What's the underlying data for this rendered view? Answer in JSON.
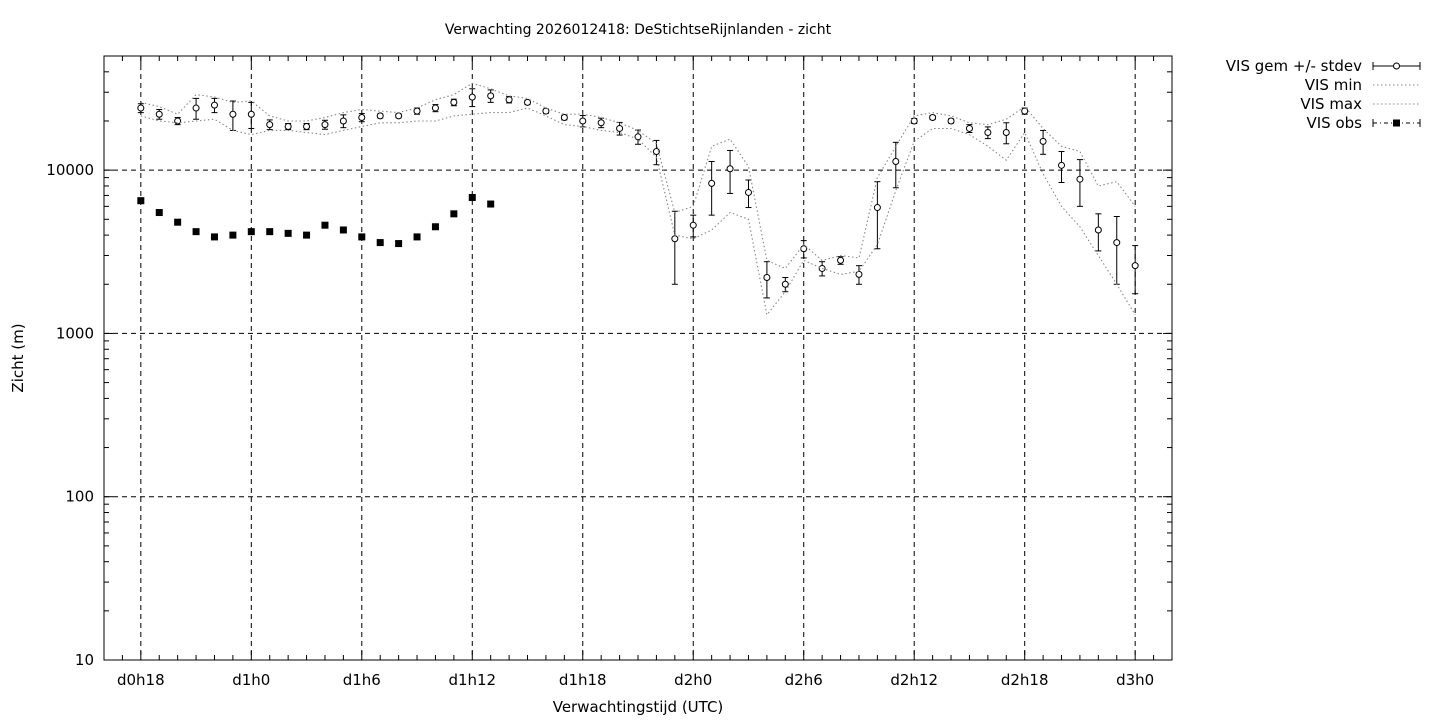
{
  "chart_data": {
    "type": "scatter",
    "title": "Verwachting 2026012418: DeStichtseRijnlanden - zicht",
    "xlabel": "Verwachtingstijd (UTC)",
    "ylabel": "Zicht (m)",
    "y_scale": "log",
    "ylim": [
      10,
      50000
    ],
    "xlim": [
      -2,
      56
    ],
    "grid": true,
    "legend_position": "outside-top-right",
    "x_ticks": [
      {
        "label": "d0h18",
        "x": 0
      },
      {
        "label": "d1h0",
        "x": 6
      },
      {
        "label": "d1h6",
        "x": 12
      },
      {
        "label": "d1h12",
        "x": 18
      },
      {
        "label": "d1h18",
        "x": 24
      },
      {
        "label": "d2h0",
        "x": 30
      },
      {
        "label": "d2h6",
        "x": 36
      },
      {
        "label": "d2h12",
        "x": 42
      },
      {
        "label": "d2h18",
        "x": 48
      },
      {
        "label": "d3h0",
        "x": 54
      }
    ],
    "y_ticks": [
      {
        "label": "10",
        "y": 10
      },
      {
        "label": "100",
        "y": 100
      },
      {
        "label": "1000",
        "y": 1000
      },
      {
        "label": "10000",
        "y": 10000
      }
    ],
    "series": [
      {
        "name": "VIS gem +/- stdev",
        "style": "points-errorbars",
        "x": [
          0,
          1,
          2,
          3,
          4,
          5,
          6,
          7,
          8,
          9,
          10,
          11,
          12,
          13,
          14,
          15,
          16,
          17,
          18,
          19,
          20,
          21,
          22,
          23,
          24,
          25,
          26,
          27,
          28,
          29,
          30,
          31,
          32,
          33,
          34,
          35,
          36,
          37,
          38,
          39,
          40,
          41,
          42,
          43,
          44,
          45,
          46,
          47,
          48,
          49,
          50,
          51,
          52,
          53,
          54
        ],
        "y": [
          24000,
          22000,
          20000,
          24000,
          25000,
          22000,
          22000,
          19000,
          18500,
          18500,
          19000,
          20000,
          21000,
          21500,
          21500,
          23000,
          24000,
          26000,
          28000,
          28500,
          27000,
          26000,
          23000,
          21000,
          20000,
          19500,
          18000,
          16000,
          13000,
          3800,
          4600,
          8300,
          10200,
          7300,
          2200,
          2000,
          3300,
          2500,
          2800,
          2300,
          5900,
          11300,
          20000,
          21000,
          20000,
          18000,
          17000,
          17000,
          23000,
          15000,
          10700,
          8800,
          4300,
          3600,
          2600
        ],
        "y_err": [
          1500,
          1500,
          1000,
          3500,
          2500,
          4500,
          4000,
          1300,
          800,
          800,
          1200,
          1800,
          1200,
          600,
          600,
          1000,
          1200,
          1200,
          3500,
          2500,
          1200,
          800,
          700,
          700,
          1600,
          1300,
          1600,
          1600,
          2200,
          1800,
          700,
          3000,
          3000,
          1400,
          550,
          200,
          400,
          250,
          150,
          300,
          2600,
          3500,
          700,
          600,
          600,
          1000,
          1400,
          2500,
          1000,
          2500,
          2300,
          2800,
          1100,
          1600,
          850
        ]
      },
      {
        "name": "VIS min",
        "style": "dotted-line",
        "x": [
          0,
          1,
          2,
          3,
          4,
          5,
          6,
          7,
          8,
          9,
          10,
          11,
          12,
          13,
          14,
          15,
          16,
          17,
          18,
          19,
          20,
          21,
          22,
          23,
          24,
          25,
          26,
          27,
          28,
          29,
          30,
          31,
          32,
          33,
          34,
          35,
          36,
          37,
          38,
          39,
          40,
          41,
          42,
          43,
          44,
          45,
          46,
          47,
          48,
          49,
          50,
          51,
          52,
          53,
          54
        ],
        "y": [
          21500,
          20000,
          19500,
          20000,
          20500,
          17500,
          16500,
          17500,
          17500,
          17000,
          16500,
          17500,
          18500,
          19500,
          19500,
          20000,
          20000,
          21500,
          22000,
          22500,
          22500,
          24000,
          21500,
          19000,
          18500,
          17500,
          17000,
          15500,
          12000,
          4000,
          3800,
          4300,
          5500,
          5000,
          1300,
          1800,
          2800,
          2500,
          2300,
          2400,
          3500,
          7500,
          15000,
          18000,
          18000,
          16500,
          14000,
          11500,
          17000,
          9500,
          6000,
          4500,
          3000,
          2000,
          1300
        ]
      },
      {
        "name": "VIS max",
        "style": "dotted-line",
        "x": [
          0,
          1,
          2,
          3,
          4,
          5,
          6,
          7,
          8,
          9,
          10,
          11,
          12,
          13,
          14,
          15,
          16,
          17,
          18,
          19,
          20,
          21,
          22,
          23,
          24,
          25,
          26,
          27,
          28,
          29,
          30,
          31,
          32,
          33,
          34,
          35,
          36,
          37,
          38,
          39,
          40,
          41,
          42,
          43,
          44,
          45,
          46,
          47,
          48,
          49,
          50,
          51,
          52,
          53,
          54
        ],
        "y": [
          26000,
          24500,
          22000,
          29000,
          28000,
          26000,
          26500,
          21500,
          20000,
          20000,
          21000,
          22500,
          23500,
          23000,
          22500,
          24000,
          27000,
          29000,
          34000,
          31500,
          28500,
          27500,
          24000,
          22000,
          22000,
          21000,
          19500,
          17500,
          14500,
          5500,
          6000,
          14000,
          15500,
          10500,
          2800,
          2500,
          3500,
          2800,
          3000,
          2900,
          9000,
          14000,
          21500,
          22500,
          21500,
          19500,
          19000,
          20500,
          24500,
          18000,
          14000,
          13000,
          8000,
          8500,
          6000
        ]
      },
      {
        "name": "VIS obs",
        "style": "filled-squares",
        "x": [
          0,
          1,
          2,
          3,
          4,
          5,
          6,
          7,
          8,
          9,
          10,
          11,
          12,
          13,
          14,
          15,
          16,
          17,
          18,
          19
        ],
        "y": [
          6500,
          5500,
          4800,
          4200,
          3900,
          4000,
          4200,
          4200,
          4100,
          4000,
          4600,
          4300,
          3900,
          3600,
          3550,
          3900,
          4500,
          5400,
          6800,
          6200
        ]
      }
    ]
  }
}
